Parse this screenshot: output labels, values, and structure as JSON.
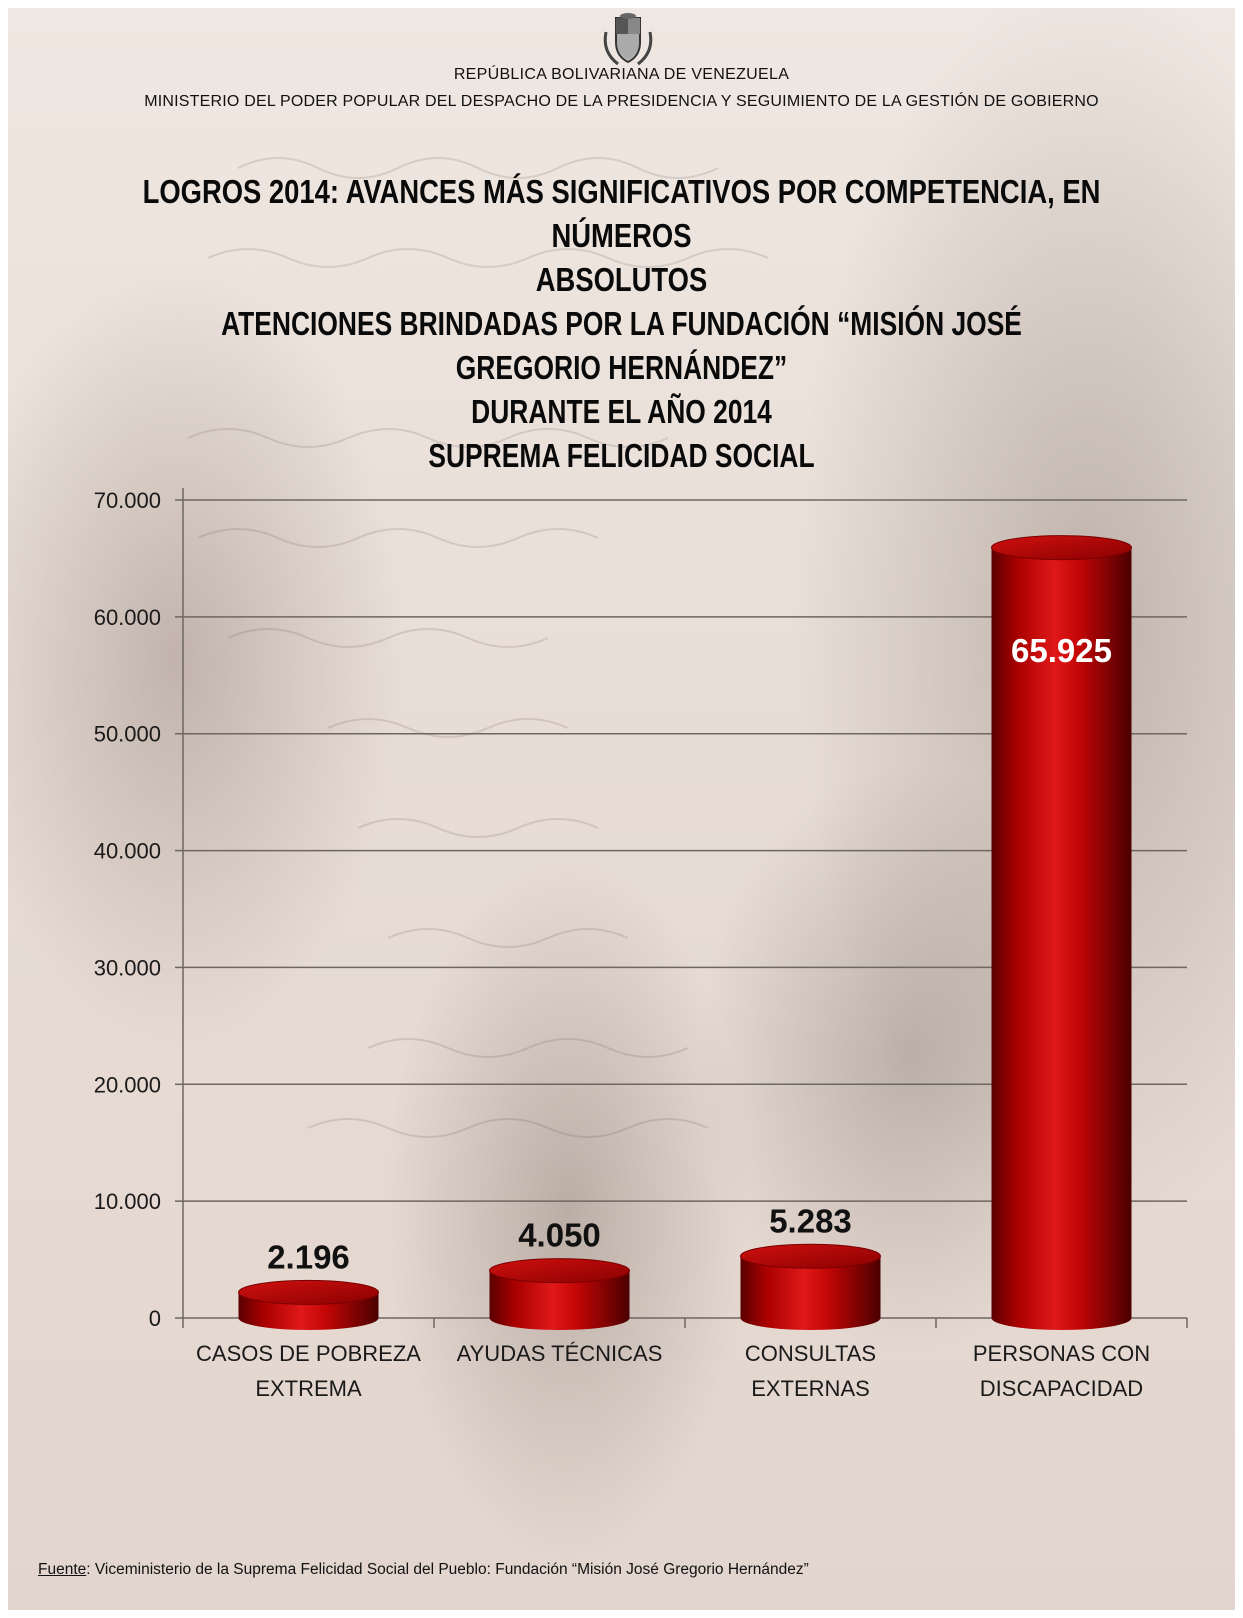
{
  "header": {
    "republic": "REPÚBLICA BOLIVARIANA DE VENEZUELA",
    "ministry": "MINISTERIO  DEL PODER POPULAR DEL DESPACHO DE LA PRESIDENCIA  Y SEGUIMIENTO  DE LA GESTIÓN DE GOBIERNO"
  },
  "titles": {
    "main_line1": "LOGROS 2014: AVANCES MÁS SIGNIFICATIVOS POR COMPETENCIA, EN NÚMEROS",
    "main_line2": "ABSOLUTOS",
    "sub_line1": "ATENCIONES BRINDADAS POR LA FUNDACIÓN “MISIÓN JOSÉ GREGORIO HERNÁNDEZ”",
    "sub_line2": "DURANTE EL AÑO 2014",
    "sub_line3": "SUPREMA FELICIDAD SOCIAL"
  },
  "chart_data": {
    "type": "bar",
    "title": "ATENCIONES BRINDADAS POR LA FUNDACIÓN “MISIÓN JOSÉ GREGORIO HERNÁNDEZ” DURANTE EL AÑO 2014",
    "categories": [
      [
        "CASOS DE POBREZA",
        "EXTREMA"
      ],
      [
        "AYUDAS TÉCNICAS"
      ],
      [
        "CONSULTAS",
        "EXTERNAS"
      ],
      [
        "PERSONAS CON",
        "DISCAPACIDAD"
      ]
    ],
    "values": [
      2196,
      4050,
      5283,
      65925
    ],
    "value_labels": [
      "2.196",
      "4.050",
      "5.283",
      "65.925"
    ],
    "y_ticks": [
      0,
      10000,
      20000,
      30000,
      40000,
      50000,
      60000,
      70000
    ],
    "y_tick_labels": [
      "0",
      "10.000",
      "20.000",
      "30.000",
      "40.000",
      "50.000",
      "60.000",
      "70.000"
    ],
    "ylim": [
      0,
      70000
    ],
    "grid": true,
    "legend": "none",
    "bar_color": "#b30000"
  },
  "footer": {
    "source_label": "Fuente",
    "source_text": ": Viceministerio de la Suprema Felicidad Social del Pueblo: Fundación “Misión José Gregorio Hernández”"
  }
}
